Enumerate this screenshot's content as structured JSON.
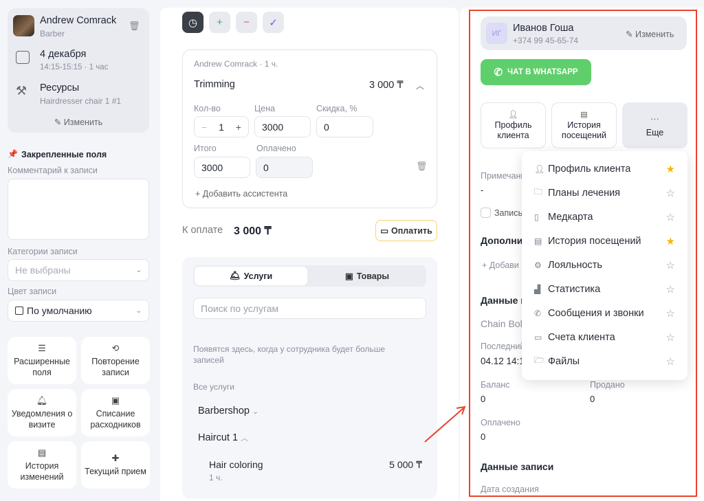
{
  "left": {
    "staff": {
      "name": "Andrew Comrack",
      "role": "Barber"
    },
    "date": {
      "title": "4 декабря",
      "time": "14:15-15:15 · 1 час"
    },
    "resources": {
      "title": "Ресурсы",
      "value": "Hairdresser chair 1 #1"
    },
    "edit_label": "Изменить",
    "pinned_title": "Закрепленные поля",
    "comment_label": "Комментарий к записи",
    "comment_value": "",
    "categories_label": "Категории записи",
    "categories_placeholder": "Не выбраны",
    "color_label": "Цвет записи",
    "color_value": "По умолчанию",
    "tiles": [
      {
        "label": "Расширенные поля"
      },
      {
        "label": "Повторение записи"
      },
      {
        "label": "Уведомления о визите"
      },
      {
        "label": "Списание расходников"
      },
      {
        "label": "История изменений"
      },
      {
        "label": "Текущий прием"
      }
    ]
  },
  "middle": {
    "service": {
      "meta": "Andrew Comrack · 1 ч.",
      "name": "Trimming",
      "price": "3 000 ₸",
      "qty_label": "Кол-во",
      "qty": "1",
      "price_label": "Цена",
      "price_value": "3000",
      "discount_label": "Скидка, %",
      "discount": "0",
      "total_label": "Итого",
      "total": "3000",
      "paid_label": "Оплачено",
      "paid": "0",
      "add_assistant": "+ Добавить ассистента"
    },
    "to_pay_label": "К оплате",
    "to_pay": "3 000 ₸",
    "pay_button": "Оплатить",
    "tabs": [
      {
        "label": "Услуги",
        "active": true
      },
      {
        "label": "Товары",
        "active": false
      }
    ],
    "search_placeholder": "Поиск по услугам",
    "hint": "Появятся здесь, когда у сотрудника будет больше записей",
    "all_services": "Все услуги",
    "groups": [
      {
        "name": "Barbershop",
        "expanded": false
      },
      {
        "name": "Haircut 1",
        "expanded": true
      }
    ],
    "item": {
      "name": "Hair coloring",
      "duration": "1 ч.",
      "price": "5 000 ₸"
    }
  },
  "right": {
    "client": {
      "initials": "ИГ",
      "name": "Иванов Гоша",
      "phone": "+374 99 45-65-74",
      "edit": "Изменить"
    },
    "whatsapp": "ЧАТ В WHATSAPP",
    "actions": [
      {
        "label": "Профиль клиента"
      },
      {
        "label": "История посещений"
      },
      {
        "label": "Еще"
      }
    ],
    "notes_label": "Примечани",
    "notes_value": "-",
    "checkbox_label": "Запись",
    "extra_title": "Дополни",
    "add_label": "+ Добави",
    "data_title": "Данные г",
    "chain": "Chain Bol",
    "last_label": "Последний",
    "last_value": "04.12 14:1",
    "balance_label": "Баланс",
    "balance": "0",
    "sold_label": "Продано",
    "sold": "0",
    "paid_label": "Оплачено",
    "paid": "0",
    "record_title": "Данные записи",
    "created_label": "Дата создания",
    "menu": [
      {
        "label": "Профиль клиента",
        "icon": "user-icon",
        "starred": true
      },
      {
        "label": "Планы лечения",
        "icon": "folder-icon",
        "starred": false
      },
      {
        "label": "Медкарта",
        "icon": "medcard-icon",
        "starred": false
      },
      {
        "label": "История посещений",
        "icon": "history-icon",
        "starred": true
      },
      {
        "label": "Лояльность",
        "icon": "discount-icon",
        "starred": false
      },
      {
        "label": "Статистика",
        "icon": "chart-icon",
        "starred": false
      },
      {
        "label": "Сообщения и звонки",
        "icon": "phone-icon",
        "starred": false
      },
      {
        "label": "Счета клиента",
        "icon": "wallet-icon",
        "starred": false
      },
      {
        "label": "Файлы",
        "icon": "folder-open-icon",
        "starred": false
      }
    ]
  },
  "colors": {
    "accent_green": "#5fcf6c",
    "highlight_red": "#e8442e",
    "star": "#f5b800",
    "pay_border": "#f3d66b"
  }
}
